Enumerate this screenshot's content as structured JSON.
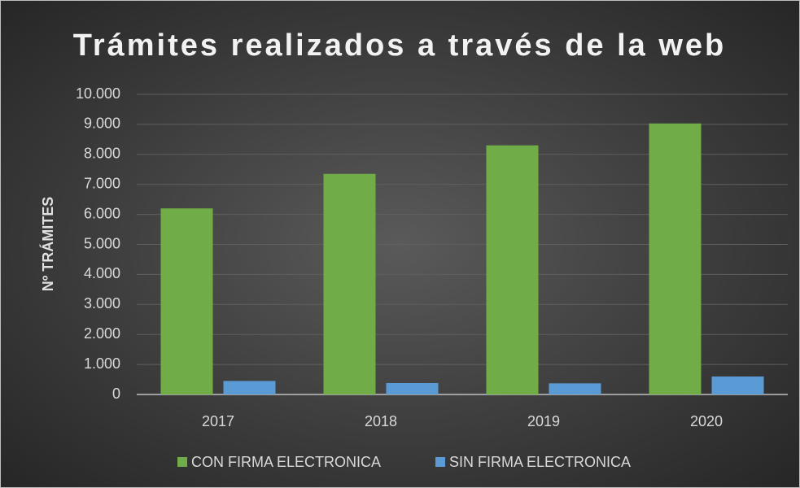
{
  "chart_data": {
    "type": "bar",
    "title": "Trámites realizados a través de la web",
    "y_label": "Nº TRÁMITES",
    "categories": [
      "2017",
      "2018",
      "2019",
      "2020"
    ],
    "series": [
      {
        "name": "CON FIRMA ELECTRONICA",
        "color": "#70ad47",
        "values": [
          6200,
          7350,
          8300,
          9030
        ]
      },
      {
        "name": "SIN FIRMA ELECTRONICA",
        "color": "#5b9bd5",
        "values": [
          450,
          380,
          370,
          600
        ]
      }
    ],
    "ylim": [
      0,
      10000
    ],
    "yticks": [
      0,
      {
        "value": 1000,
        "label": "1.000"
      },
      {
        "value": 2000,
        "label": "2.000"
      },
      {
        "value": 3000,
        "label": "3.000"
      },
      {
        "value": 4000,
        "label": "4.000"
      },
      {
        "value": 5000,
        "label": "5.000"
      },
      {
        "value": 6000,
        "label": "6.000"
      },
      {
        "value": 7000,
        "label": "7.000"
      },
      {
        "value": 8000,
        "label": "8.000"
      },
      {
        "value": 9000,
        "label": "9.000"
      },
      {
        "value": 10000,
        "label": "10.000"
      }
    ],
    "grid": true,
    "legend": "bottom"
  }
}
